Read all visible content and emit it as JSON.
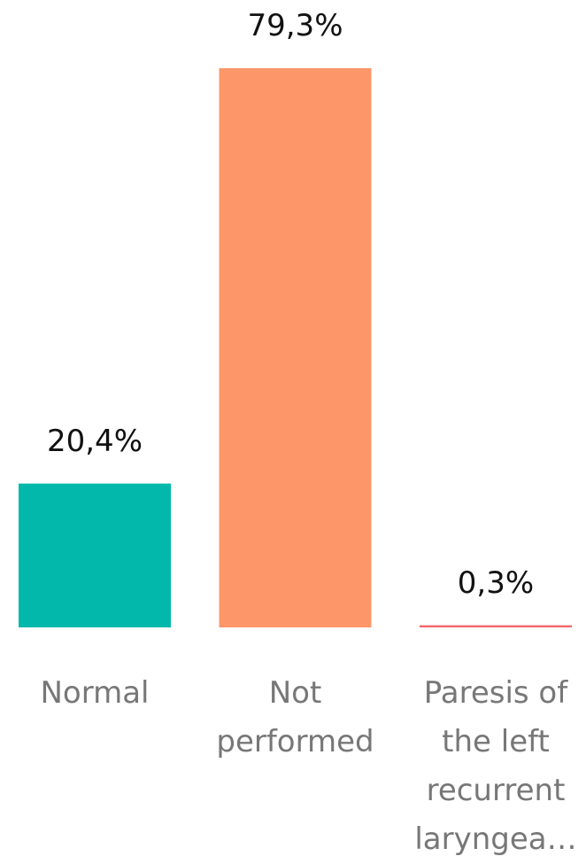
{
  "chart_data": {
    "type": "bar",
    "categories": [
      "Normal",
      "Not performed",
      "Paresis of the left recurrent laryngea…"
    ],
    "values": [
      20.4,
      79.3,
      0.3
    ],
    "value_labels": [
      "20,4%",
      "79,3%",
      "0,3%"
    ],
    "colors": [
      "#01b8aa",
      "#fd9668",
      "#f2686c"
    ]
  }
}
